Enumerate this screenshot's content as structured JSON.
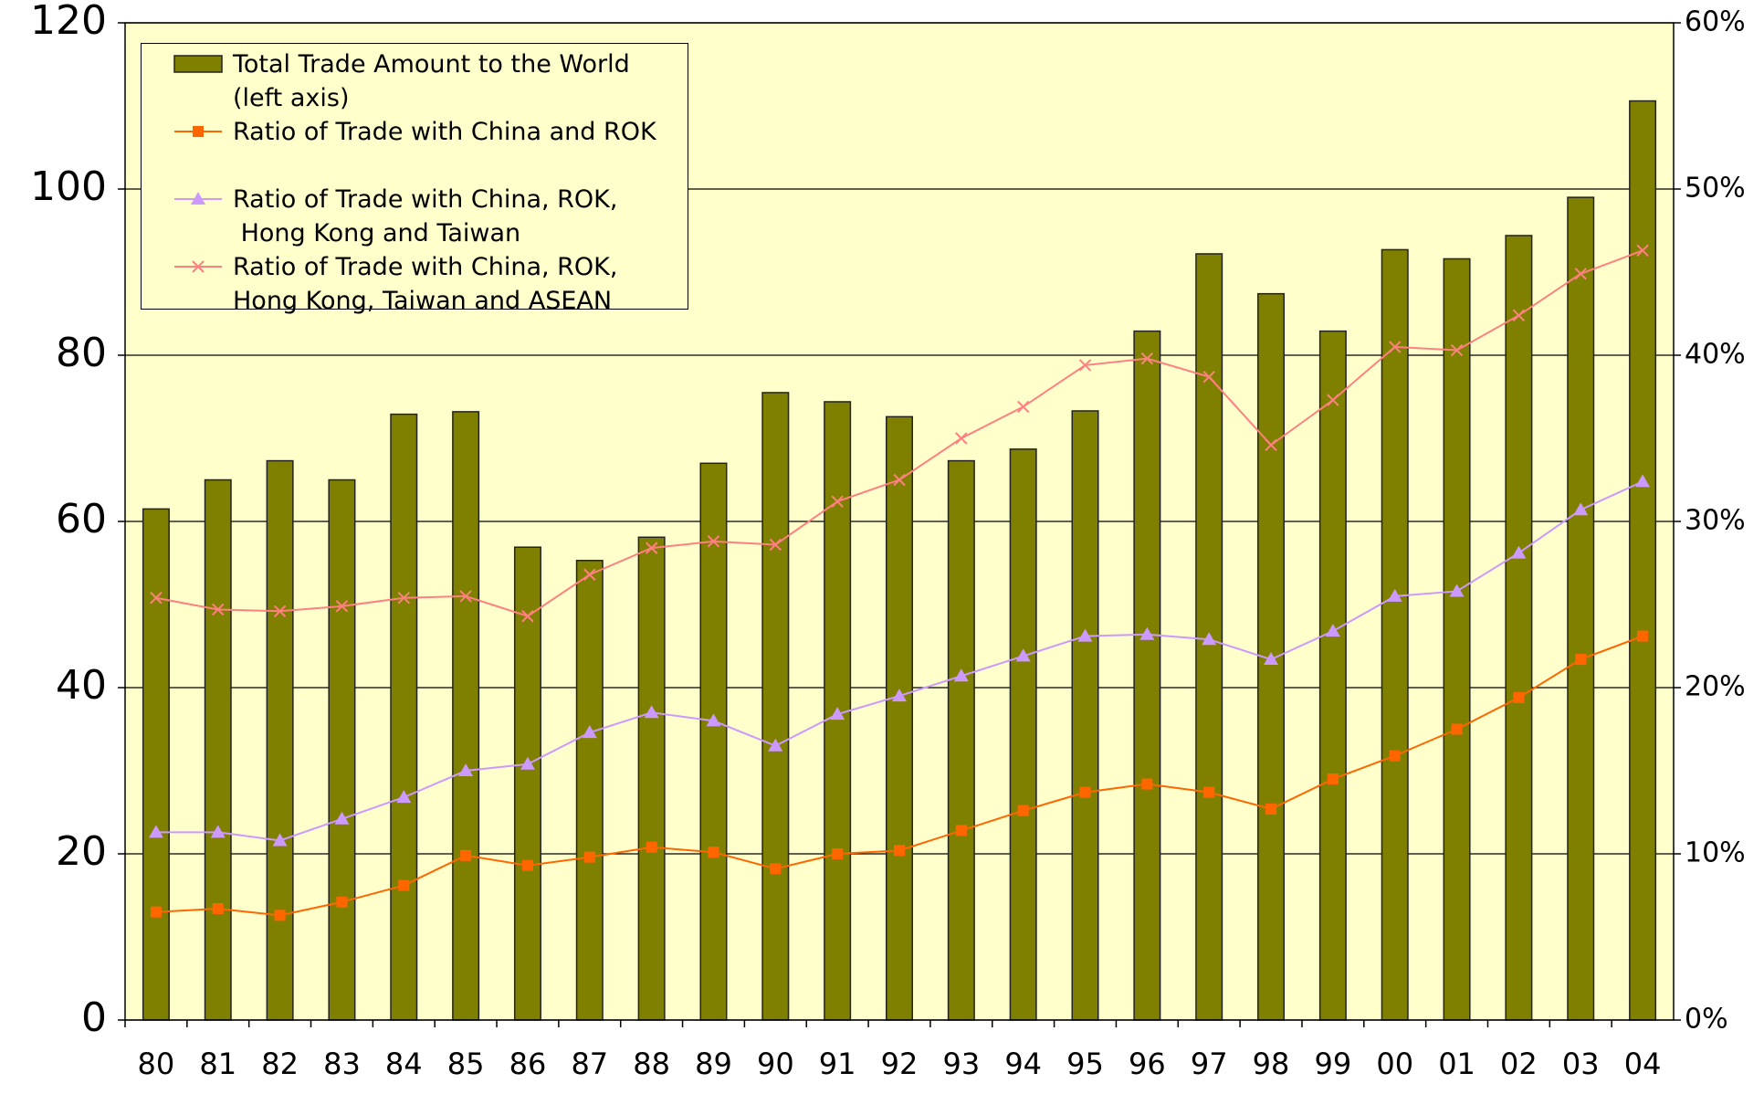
{
  "chart_data": {
    "type": "bar_line",
    "categories": [
      "80",
      "81",
      "82",
      "83",
      "84",
      "85",
      "86",
      "87",
      "88",
      "89",
      "90",
      "91",
      "92",
      "93",
      "94",
      "95",
      "96",
      "97",
      "98",
      "99",
      "00",
      "01",
      "02",
      "03",
      "04"
    ],
    "series": [
      {
        "name": "Total Trade Amount to the World\n(left axis)",
        "type": "bar",
        "color": "#808000",
        "values": [
          61.5,
          65,
          67.3,
          65,
          72.9,
          73.2,
          56.9,
          55.3,
          58.1,
          67,
          75.5,
          74.4,
          72.6,
          67.3,
          68.7,
          73.3,
          82.9,
          92.2,
          87.4,
          82.9,
          92.7,
          91.6,
          94.4,
          99,
          110.6
        ]
      },
      {
        "name": "Ratio of Trade with China and ROK",
        "type": "line",
        "axis": "y2",
        "color": "#ff6600",
        "marker": "square",
        "values": [
          6.5,
          6.7,
          6.3,
          7.1,
          8.1,
          9.9,
          9.3,
          9.8,
          10.4,
          10.1,
          9.1,
          10.0,
          10.2,
          11.4,
          12.6,
          13.7,
          14.2,
          13.7,
          12.7,
          14.5,
          15.9,
          17.5,
          19.4,
          21.7,
          23.1
        ]
      },
      {
        "name": "Ratio of Trade with China, ROK,\n Hong Kong and Taiwan",
        "type": "line",
        "axis": "y2",
        "color": "#cc99ff",
        "marker": "triangle",
        "values": [
          11.3,
          11.3,
          10.8,
          12.1,
          13.4,
          15.0,
          15.4,
          17.3,
          18.5,
          18.0,
          16.5,
          18.4,
          19.5,
          20.7,
          21.9,
          23.1,
          23.2,
          22.9,
          21.7,
          23.4,
          25.5,
          25.8,
          28.1,
          30.7,
          32.4
        ]
      },
      {
        "name": "Ratio of Trade with China, ROK,\nHong Kong, Taiwan and ASEAN",
        "type": "line",
        "axis": "y2",
        "color": "#ff8080",
        "marker": "x",
        "values": [
          25.4,
          24.7,
          24.6,
          24.9,
          25.4,
          25.5,
          24.3,
          26.8,
          28.4,
          28.8,
          28.6,
          31.2,
          32.5,
          35.0,
          36.9,
          39.4,
          39.8,
          38.7,
          34.6,
          37.3,
          40.5,
          40.3,
          42.4,
          44.9,
          46.3
        ]
      }
    ],
    "ylim": [
      0,
      120
    ],
    "yticks": [
      0,
      20,
      40,
      60,
      80,
      100,
      120
    ],
    "y2lim": [
      0,
      60
    ],
    "y2ticks": [
      {
        "value": 0,
        "label": "0%"
      },
      {
        "value": 10,
        "label": "10%"
      },
      {
        "value": 20,
        "label": "20%"
      },
      {
        "value": 30,
        "label": "30%"
      },
      {
        "value": 40,
        "label": "40%"
      },
      {
        "value": 50,
        "label": "50%"
      },
      {
        "value": 60,
        "label": "60%"
      }
    ],
    "grid": true,
    "background": "#ffffcc",
    "legend": "upper left"
  }
}
